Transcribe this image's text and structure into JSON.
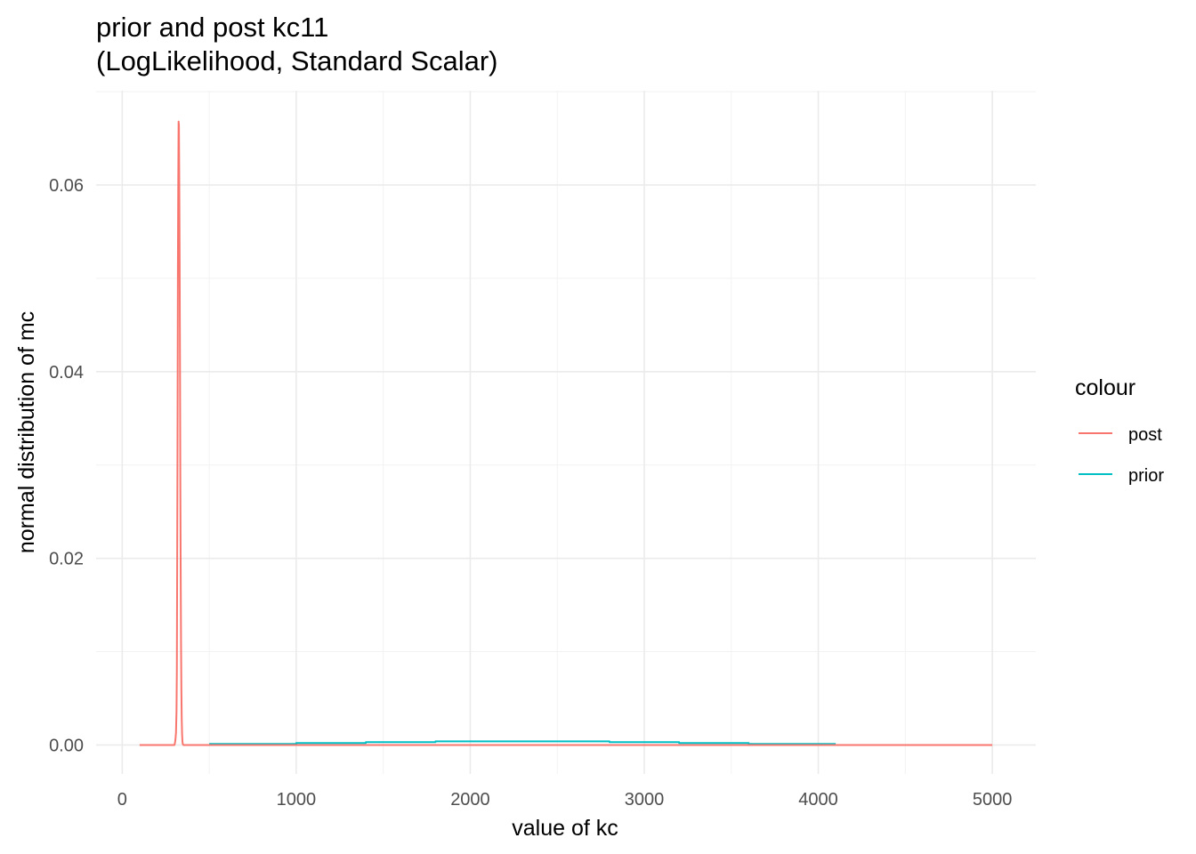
{
  "chart_data": {
    "type": "line",
    "title": "prior and post kc11",
    "subtitle": "(LogLikelihood, Standard Scalar)",
    "xlabel": "value of kc",
    "ylabel": "normal distribution of mc",
    "xlim": [
      -150,
      5250
    ],
    "ylim": [
      -0.0031,
      0.0701
    ],
    "x_ticks": [
      0,
      1000,
      2000,
      3000,
      4000,
      5000
    ],
    "x_tick_labels": [
      "0",
      "1000",
      "2000",
      "3000",
      "4000",
      "5000"
    ],
    "y_ticks": [
      0,
      0.02,
      0.04,
      0.06
    ],
    "y_tick_labels": [
      "0.00",
      "0.02",
      "0.04",
      "0.06"
    ],
    "grid": true,
    "legend": {
      "title": "colour",
      "position": "right",
      "entries": [
        "post",
        "prior"
      ]
    },
    "series": [
      {
        "name": "post",
        "color": "#F8766D",
        "points": [
          [
            100,
            0
          ],
          [
            300,
            0
          ],
          [
            303,
            0.0002
          ],
          [
            306,
            0.0006
          ],
          [
            309,
            0.0013
          ],
          [
            312,
            0.0036
          ],
          [
            314,
            0.008
          ],
          [
            316,
            0.02
          ],
          [
            318,
            0.034
          ],
          [
            320,
            0.051
          ],
          [
            322,
            0.06
          ],
          [
            324,
            0.0668
          ],
          [
            326,
            0.0664
          ],
          [
            328,
            0.06
          ],
          [
            330,
            0.052
          ],
          [
            332,
            0.041
          ],
          [
            334,
            0.028
          ],
          [
            336,
            0.019
          ],
          [
            338,
            0.011
          ],
          [
            340,
            0.006
          ],
          [
            342,
            0.0028
          ],
          [
            344,
            0.0012
          ],
          [
            346,
            0.0004
          ],
          [
            348,
            0.0001
          ],
          [
            352,
            0
          ],
          [
            5000,
            0
          ]
        ]
      },
      {
        "name": "prior",
        "color": "#00BFC4",
        "points": [
          [
            500,
            0.00012
          ],
          [
            1000,
            0.00012
          ],
          [
            1000,
            0.00021
          ],
          [
            1400,
            0.00021
          ],
          [
            1400,
            0.00031
          ],
          [
            1800,
            0.00031
          ],
          [
            1800,
            0.00039
          ],
          [
            2800,
            0.00039
          ],
          [
            2800,
            0.00031
          ],
          [
            3200,
            0.00031
          ],
          [
            3200,
            0.00021
          ],
          [
            3600,
            0.00021
          ],
          [
            3600,
            0.00012
          ],
          [
            4100,
            0.00012
          ]
        ]
      }
    ]
  }
}
